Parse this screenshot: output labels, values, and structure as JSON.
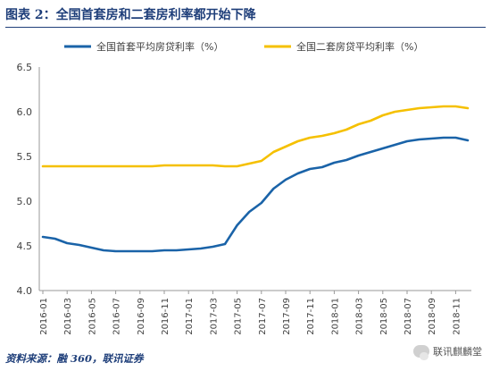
{
  "figure": {
    "title": "图表 2：全国首套房和二套房利率都开始下降",
    "source": "资料来源：融 360，联讯证券",
    "watermark": "联讯麒麟堂",
    "watermark_icon": "wechat-icon"
  },
  "chart_data": {
    "type": "line",
    "title": "",
    "xlabel": "",
    "ylabel": "",
    "ylim": [
      4.0,
      6.5
    ],
    "yticks": [
      "4.0",
      "4.5",
      "5.0",
      "5.5",
      "6.0",
      "6.5"
    ],
    "legend_position": "top",
    "grid": false,
    "x": [
      "2016-01",
      "2016-02",
      "2016-03",
      "2016-04",
      "2016-05",
      "2016-06",
      "2016-07",
      "2016-08",
      "2016-09",
      "2016-10",
      "2016-11",
      "2016-12",
      "2017-01",
      "2017-02",
      "2017-03",
      "2017-04",
      "2017-05",
      "2017-06",
      "2017-07",
      "2017-08",
      "2017-09",
      "2017-10",
      "2017-11",
      "2017-12",
      "2018-01",
      "2018-02",
      "2018-03",
      "2018-04",
      "2018-05",
      "2018-06",
      "2018-07",
      "2018-08",
      "2018-09",
      "2018-10",
      "2018-11",
      "2018-12"
    ],
    "xtick_labels": [
      "2016-01",
      "2016-03",
      "2016-05",
      "2016-07",
      "2016-09",
      "2016-11",
      "2017-01",
      "2017-03",
      "2017-05",
      "2017-07",
      "2017-09",
      "2017-11",
      "2018-01",
      "2018-03",
      "2018-05",
      "2018-07",
      "2018-09",
      "2018-11"
    ],
    "series": [
      {
        "name": "全国首套平均房贷利率（%）",
        "color": "#1a63a8",
        "values": [
          4.6,
          4.58,
          4.53,
          4.51,
          4.48,
          4.45,
          4.44,
          4.44,
          4.44,
          4.44,
          4.45,
          4.45,
          4.46,
          4.47,
          4.49,
          4.52,
          4.73,
          4.88,
          4.98,
          5.14,
          5.24,
          5.31,
          5.36,
          5.38,
          5.43,
          5.46,
          5.51,
          5.55,
          5.59,
          5.63,
          5.67,
          5.69,
          5.7,
          5.71,
          5.71,
          5.68
        ]
      },
      {
        "name": "全国二套房贷平均利率（%）",
        "color": "#f5c000",
        "values": [
          5.39,
          5.39,
          5.39,
          5.39,
          5.39,
          5.39,
          5.39,
          5.39,
          5.39,
          5.39,
          5.4,
          5.4,
          5.4,
          5.4,
          5.4,
          5.39,
          5.39,
          5.42,
          5.45,
          5.55,
          5.61,
          5.67,
          5.71,
          5.73,
          5.76,
          5.8,
          5.86,
          5.9,
          5.96,
          6.0,
          6.02,
          6.04,
          6.05,
          6.06,
          6.06,
          6.04
        ]
      }
    ]
  }
}
